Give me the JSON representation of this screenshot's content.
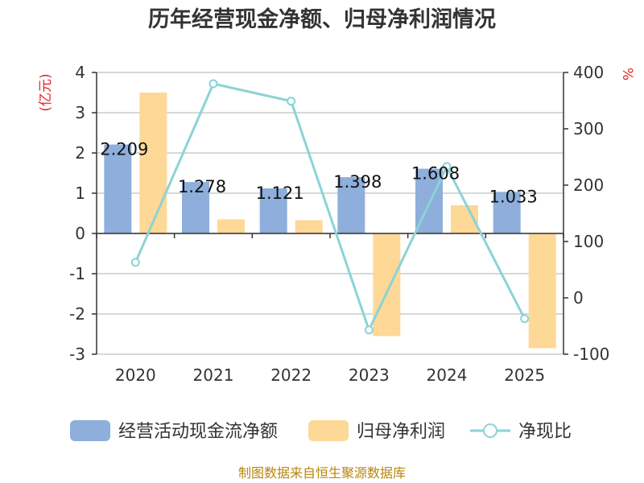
{
  "chart_data": {
    "type": "bar",
    "title": "历年经营现金净额、归母净利润情况",
    "categories": [
      "2020",
      "2021",
      "2022",
      "2023",
      "2024",
      "2025"
    ],
    "left_axis": {
      "unit": "(亿元)",
      "ticks": [
        4,
        3,
        2,
        1,
        0,
        -1,
        -2,
        -3
      ],
      "ylim": [
        -3,
        4
      ]
    },
    "right_axis": {
      "unit": "%",
      "ticks": [
        400,
        300,
        200,
        100,
        0,
        -100
      ],
      "ylim": [
        -100,
        400
      ]
    },
    "grid": true,
    "legend_position": "bottom",
    "series": [
      {
        "name": "经营活动现金流净额",
        "type": "bar",
        "axis": "left",
        "color": "#8eaedb",
        "values": [
          2.209,
          1.278,
          1.121,
          1.398,
          1.608,
          1.033
        ],
        "labels": [
          "2.209",
          "1.278",
          "1.121",
          "1.398",
          "1.608",
          "1.033"
        ]
      },
      {
        "name": "归母净利润",
        "type": "bar",
        "axis": "left",
        "color": "#fdd896",
        "values": [
          3.5,
          0.35,
          0.33,
          -2.55,
          0.7,
          -2.85
        ]
      },
      {
        "name": "净现比",
        "type": "line",
        "axis": "right",
        "color": "#8cd3d6",
        "values": [
          63,
          380,
          349,
          -57,
          233,
          -37
        ]
      }
    ],
    "source": "制图数据来自恒生聚源数据库"
  }
}
